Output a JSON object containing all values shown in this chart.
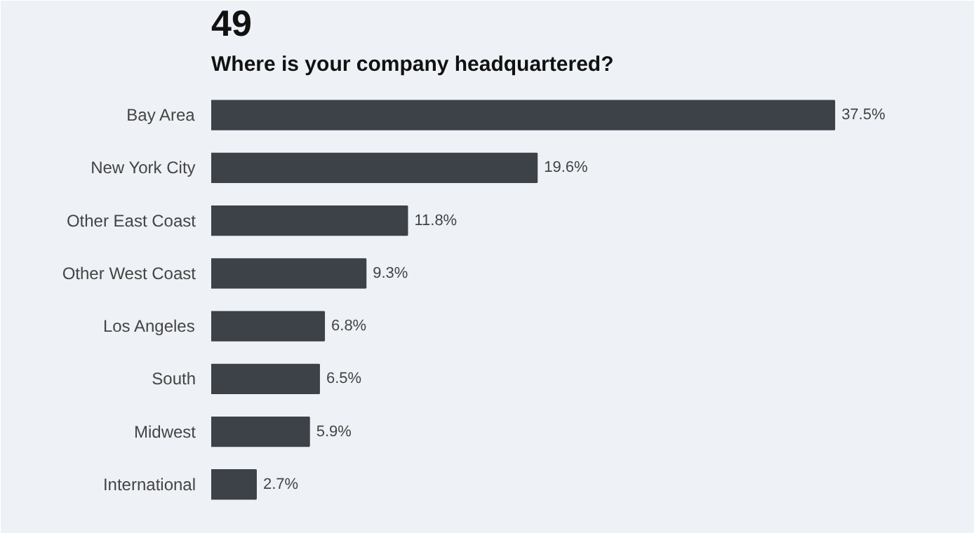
{
  "chart_data": {
    "type": "bar",
    "orientation": "horizontal",
    "title": "Where is your company headquartered?",
    "annotations": [
      "49"
    ],
    "categories": [
      "Bay Area",
      "New York City",
      "Other East Coast",
      "Other West Coast",
      "Los Angeles",
      "South",
      "Midwest",
      "International"
    ],
    "values": [
      37.5,
      19.6,
      11.8,
      9.3,
      6.8,
      6.5,
      5.9,
      2.7
    ],
    "value_labels": [
      "37.5%",
      "19.6%",
      "11.8%",
      "9.3%",
      "6.8%",
      "6.5%",
      "5.9%",
      "2.7%"
    ],
    "color": "#3d4148",
    "grid": false
  }
}
